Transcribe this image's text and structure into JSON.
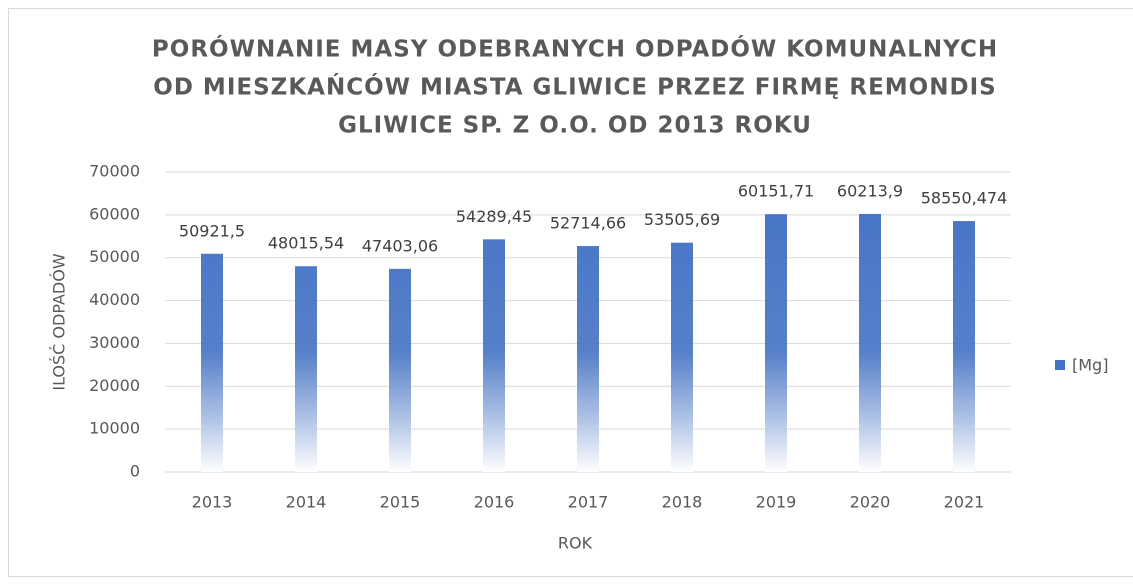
{
  "chart_data": {
    "type": "bar",
    "title": [
      "PORÓWNANIE MASY ODEBRANYCH ODPADÓW KOMUNALNYCH",
      "OD MIESZKAŃCÓW MIASTA GLIWICE PRZEZ FIRMĘ REMONDIS",
      "GLIWICE SP. Z O.O. OD 2013 ROKU"
    ],
    "x_label": "ROK",
    "y_label": "ILOŚĆ ODPADÓW",
    "categories": [
      "2013",
      "2014",
      "2015",
      "2016",
      "2017",
      "2018",
      "2019",
      "2020",
      "2021"
    ],
    "series": [
      {
        "name": "[Mg]",
        "color": "#4472c4",
        "values": [
          50921.5,
          48015.54,
          47403.06,
          54289.45,
          52714.66,
          53505.69,
          60151.71,
          60213.9,
          58550.474
        ],
        "value_labels": [
          "50921,5",
          "48015,54",
          "47403,06",
          "54289,45",
          "52714,66",
          "53505,69",
          "60151,71",
          "60213,9",
          "58550,474"
        ]
      }
    ],
    "ylim": [
      0,
      70000
    ],
    "yticks": [
      0,
      10000,
      20000,
      30000,
      40000,
      50000,
      60000,
      70000
    ],
    "grid": true,
    "legend": "right"
  }
}
